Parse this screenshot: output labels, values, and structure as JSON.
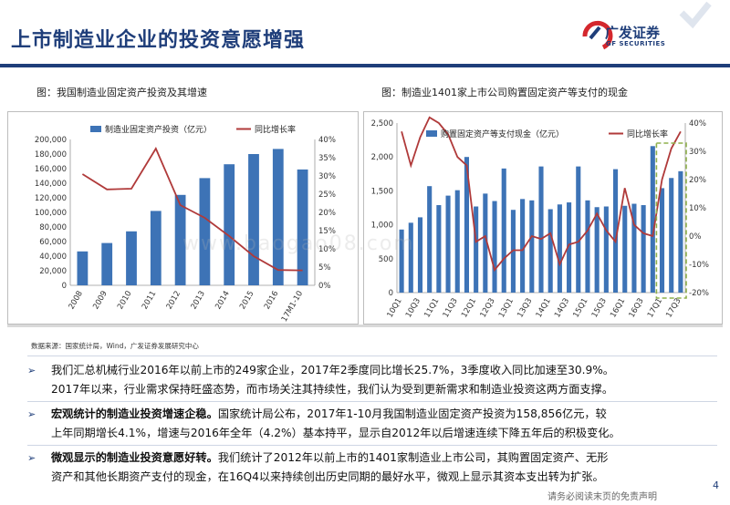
{
  "header": {
    "title": "上市制造业企业的投资意愿增强",
    "logo_name": "广发证券",
    "logo_sub": "GF SECURITIES"
  },
  "left_caption": "图：我国制造业固定资产投资及其增速",
  "right_caption": "图：制造业1401家上市公司购置固定资产等支付的现金",
  "watermark": "www.baogao08.com",
  "source": "数据来源：国家统计局，Wind，广发证券发展研究中心",
  "bullets": [
    {
      "bold": "",
      "line1": "我们汇总机械行业2016年以前上市的249家企业，2017年2季度同比增长25.7%，3季度收入同比加速至30.9%。",
      "line2": "2017年以来，行业需求保持旺盛态势，而市场关注其持续性，我们认为受到更新需求和制造业投资这两方面支撑。"
    },
    {
      "bold": "宏观统计的制造业投资增速企稳。",
      "line1": "国家统计局公布，2017年1-10月我国制造业固定资产投资为158,856亿元，较",
      "line2": "上年同期增长4.1%，增速与2016年全年（4.2%）基本持平，显示自2012年以后增速连续下降五年后的积极变化。"
    },
    {
      "bold": "微观显示的制造业投资意愿好转。",
      "line1": "我们统计了2012年以前上市的1401家制造业上市公司，其购置固定资产、无形",
      "line2": "资产和其他长期资产支付的现金，在16Q4以来持续创出历史同期的最好水平，微观上显示其资本支出转为扩张。"
    }
  ],
  "page_number": "4",
  "disclaimer": "请务必阅读末页的免责声明",
  "chart_data": [
    {
      "type": "bar",
      "legend": [
        "制造业固定资产投资（亿元）",
        "同比增长率"
      ],
      "categories": [
        "2008",
        "2009",
        "2010",
        "2011",
        "2012",
        "2013",
        "2014",
        "2015",
        "2016",
        "17M1-10"
      ],
      "series": [
        {
          "name": "制造业固定资产投资（亿元）",
          "kind": "bar",
          "axis": "left",
          "values": [
            46500,
            58000,
            74000,
            102000,
            124000,
            147000,
            166000,
            180000,
            187000,
            158856
          ]
        },
        {
          "name": "同比增长率",
          "kind": "line",
          "axis": "right",
          "values": [
            30.5,
            26.3,
            26.5,
            37.5,
            22.0,
            18.5,
            13.5,
            8.0,
            4.2,
            4.1
          ]
        }
      ],
      "yleft": {
        "min": 0,
        "max": 200000,
        "ticks": [
          "0",
          "20,000",
          "40,000",
          "60,000",
          "80,000",
          "100,000",
          "120,000",
          "140,000",
          "160,000",
          "180,000",
          "200,000"
        ]
      },
      "yright": {
        "min": 0,
        "max": 40,
        "ticks": [
          "0%",
          "5%",
          "10%",
          "15%",
          "20%",
          "25%",
          "30%",
          "35%",
          "40%"
        ]
      },
      "colors": {
        "bar": "#3d73b6",
        "line": "#b03a3a"
      }
    },
    {
      "type": "bar",
      "legend": [
        "购置固定资产等支付现金（亿元）",
        "同比增长率"
      ],
      "x_labels": [
        "10Q1",
        "10Q3",
        "11Q1",
        "11Q3",
        "12Q1",
        "12Q3",
        "13Q1",
        "13Q3",
        "14Q1",
        "14Q3",
        "15Q1",
        "15Q3",
        "16Q1",
        "16Q3",
        "17Q1",
        "17Q3"
      ],
      "quarters": [
        "10Q1",
        "10Q2",
        "10Q3",
        "10Q4",
        "11Q1",
        "11Q2",
        "11Q3",
        "11Q4",
        "12Q1",
        "12Q2",
        "12Q3",
        "12Q4",
        "13Q1",
        "13Q2",
        "13Q3",
        "13Q4",
        "14Q1",
        "14Q2",
        "14Q3",
        "14Q4",
        "15Q1",
        "15Q2",
        "15Q3",
        "15Q4",
        "16Q1",
        "16Q2",
        "16Q3",
        "16Q4",
        "17Q1",
        "17Q2",
        "17Q3"
      ],
      "series": [
        {
          "name": "购置固定资产等支付现金（亿元）",
          "kind": "bar",
          "axis": "left",
          "values": [
            930,
            1030,
            1110,
            1570,
            1290,
            1430,
            1510,
            2000,
            1270,
            1460,
            1350,
            1830,
            1220,
            1380,
            1360,
            1860,
            1230,
            1300,
            1330,
            1860,
            1360,
            1260,
            1270,
            1820,
            1280,
            1310,
            1290,
            2160,
            1540,
            1690,
            1790
          ]
        },
        {
          "name": "同比增长率",
          "kind": "line",
          "axis": "right",
          "values": [
            37,
            25,
            35,
            42,
            40,
            36,
            28,
            25,
            -2,
            0,
            -12,
            -8,
            -5,
            -5,
            0,
            -1,
            1,
            -10,
            -3,
            -2,
            2,
            8,
            2,
            -2,
            17,
            4,
            1,
            0,
            20,
            31,
            37
          ]
        }
      ],
      "yleft": {
        "min": 0,
        "max": 2500,
        "ticks": [
          "0",
          "500",
          "1,000",
          "1,500",
          "2,000",
          "2,500"
        ]
      },
      "yright": {
        "min": -20,
        "max": 40,
        "ticks": [
          "-20%",
          "-10%",
          "0%",
          "10%",
          "20%",
          "30%",
          "40%"
        ]
      },
      "colors": {
        "bar": "#3d73b6",
        "line": "#b03a3a",
        "highlight": "#8fb04b"
      }
    }
  ]
}
